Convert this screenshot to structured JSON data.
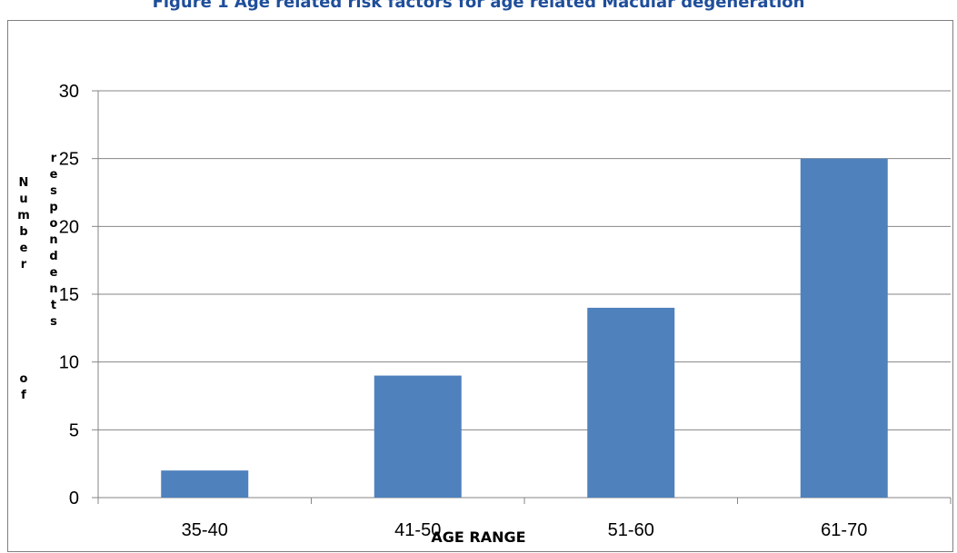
{
  "title": "Figure 1 Age related risk factors for age related Macular degeneration",
  "chart_data": {
    "type": "bar",
    "categories": [
      "35-40",
      "41-50",
      "51-60",
      "61-70"
    ],
    "values": [
      2,
      9,
      14,
      25
    ],
    "title": "Figure 1 Age related risk factors for age related Macular degeneration",
    "xlabel": "AGE RANGE",
    "ylabel": "Number of respondents",
    "ylim": [
      0,
      30
    ],
    "yticks": [
      0,
      5,
      10,
      15,
      20,
      25,
      30
    ],
    "grid": true,
    "legend": "none",
    "bar_color": "#4f81bd"
  }
}
